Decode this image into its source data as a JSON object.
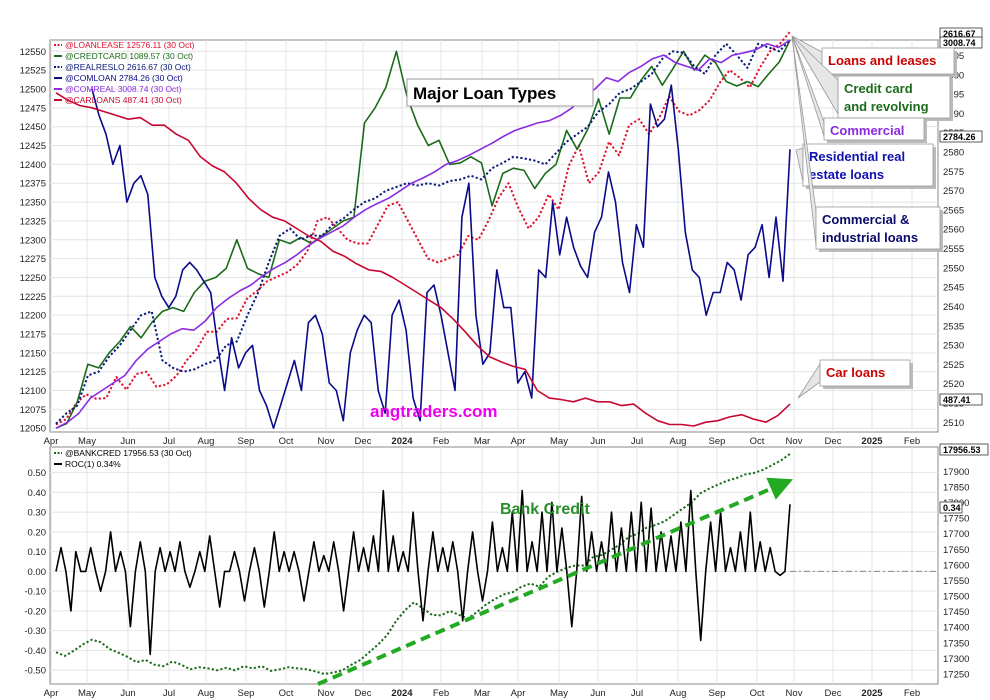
{
  "chart_data": [
    {
      "type": "line",
      "title": "Major Loan Types",
      "watermark": "angtraders.com",
      "x_ticks": [
        "Apr",
        "May",
        "Jun",
        "Jul",
        "Aug",
        "Sep",
        "Oct",
        "Nov",
        "Dec",
        "2024",
        "Feb",
        "Mar",
        "Apr",
        "May",
        "Jun",
        "Jul",
        "Aug",
        "Sep",
        "Oct",
        "Nov",
        "Dec",
        "2025",
        "Feb"
      ],
      "left_axis_ticks": [
        "12050",
        "12075",
        "12100",
        "12125",
        "12150",
        "12175",
        "12200",
        "12225",
        "12250",
        "12275",
        "12300",
        "12325",
        "12350",
        "12375",
        "12400",
        "12425",
        "12450",
        "12475",
        "12500",
        "12525",
        "12550"
      ],
      "right_axis_ticks": [
        "2510",
        "2515",
        "2520",
        "2525",
        "2530",
        "2535",
        "2540",
        "2545",
        "2550",
        "2555",
        "2560",
        "2565",
        "2570",
        "2575",
        "2580",
        "2585",
        "2590",
        "2595",
        "2600",
        "2605"
      ],
      "left_ylim": [
        12045,
        12565
      ],
      "right_ylim": [
        2507.5,
        2609
      ],
      "grid": true,
      "legend_position": "top-left",
      "last_value_flags": [
        "2616.67",
        "3008.74",
        "2784.26",
        "487.41"
      ],
      "series": [
        {
          "name": "@LOANLEASE 12576.11 (30 Oct)",
          "color": "#e0102e",
          "dash": "dotted",
          "values": [
            12055,
            12062,
            12083,
            12095,
            12089,
            12090,
            12118,
            12101,
            12122,
            12125,
            12105,
            12108,
            12120,
            12140,
            12155,
            12178,
            12178,
            12195,
            12196,
            12222,
            12232,
            12245,
            12251,
            12257,
            12267,
            12285,
            12325,
            12330,
            12315,
            12300,
            12295,
            12295,
            12320,
            12345,
            12350,
            12325,
            12300,
            12275,
            12270,
            12275,
            12280,
            12305,
            12300,
            12325,
            12355,
            12375,
            12342,
            12315,
            12330,
            12360,
            12340,
            12398,
            12425,
            12375,
            12390,
            12430,
            12412,
            12452,
            12460,
            12440,
            12462,
            12490,
            12470,
            12465,
            12472,
            12485,
            12508,
            12525,
            12515,
            12502,
            12528,
            12550,
            12560,
            12576
          ]
        },
        {
          "name": "@CREDTCARD 1089.57 (30 Oct)",
          "color": "#1a6b1a",
          "dash": "solid",
          "values": [
            12050,
            12056,
            12085,
            12135,
            12130,
            12150,
            12165,
            12185,
            12170,
            12190,
            12205,
            12210,
            12205,
            12230,
            12245,
            12250,
            12262,
            12300,
            12262,
            12255,
            12250,
            12300,
            12295,
            12303,
            12295,
            12305,
            12315,
            12325,
            12330,
            12455,
            12475,
            12502,
            12550,
            12490,
            12452,
            12425,
            12432,
            12400,
            12402,
            12410,
            12402,
            12345,
            12388,
            12395,
            12392,
            12368,
            12388,
            12400,
            12445,
            12420,
            12447,
            12487,
            12440,
            12488,
            12488,
            12512,
            12530,
            12505,
            12527,
            12550,
            12525,
            12545,
            12535,
            12510,
            12504,
            12510,
            12503,
            12520,
            12536,
            12565
          ]
        },
        {
          "name": "@REALRESLO 2616.67 (30 Oct)",
          "color": "#0a1a7a",
          "dash": "dotted",
          "values": [
            12056,
            12070,
            12080,
            12120,
            12125,
            12145,
            12160,
            12180,
            12200,
            12205,
            12140,
            12130,
            12125,
            12128,
            12135,
            12140,
            12160,
            12165,
            12200,
            12230,
            12270,
            12305,
            12315,
            12300,
            12306,
            12305,
            12320,
            12328,
            12340,
            12350,
            12355,
            12365,
            12370,
            12375,
            12372,
            12375,
            12372,
            12378,
            12380,
            12385,
            12380,
            12395,
            12402,
            12410,
            12408,
            12405,
            12400,
            12415,
            12430,
            12440,
            12450,
            12470,
            12480,
            12495,
            12500,
            12510,
            12520,
            12540,
            12550,
            12548,
            12530,
            12520,
            12545,
            12560,
            12545,
            12528,
            12560,
            12555,
            12550,
            12565
          ]
        },
        {
          "name": "@COMLOAN 2784.26 (30 Oct)",
          "color": "#0a0a8a",
          "dash": "solid",
          "values": [
            12500,
            12465,
            12440,
            12400,
            12425,
            12350,
            12375,
            12385,
            12360,
            12250,
            12225,
            12210,
            12225,
            12260,
            12270,
            12260,
            12245,
            12230,
            12160,
            12100,
            12170,
            12130,
            12150,
            12160,
            12100,
            12080,
            12050,
            12080,
            12110,
            12140,
            12100,
            12190,
            12200,
            12175,
            12110,
            12100,
            12060,
            12150,
            12180,
            12200,
            12190,
            12100,
            12070,
            12200,
            12220,
            12180,
            12090,
            12060,
            12230,
            12240,
            12200,
            12150,
            12100,
            12330,
            12375,
            12200,
            12135,
            12150,
            12260,
            12210,
            12210,
            12110,
            12125,
            12090,
            12260,
            12250,
            12350,
            12280,
            12330,
            12290,
            12265,
            12250,
            12310,
            12330,
            12390,
            12350,
            12270,
            12230,
            12320,
            12290,
            12480,
            12450,
            12460,
            12505,
            12420,
            12310,
            12260,
            12250,
            12200,
            12230,
            12230,
            12270,
            12260,
            12220,
            12280,
            12290,
            12320,
            12250,
            12330,
            12245,
            12420
          ]
        },
        {
          "name": "@COMREAL 3008.74 (30 Oct)",
          "color": "#8a2be2",
          "dash": "solid",
          "values": [
            12050,
            12058,
            12070,
            12090,
            12100,
            12110,
            12120,
            12140,
            12155,
            12165,
            12175,
            12182,
            12180,
            12192,
            12210,
            12222,
            12232,
            12240,
            12252,
            12262,
            12270,
            12280,
            12292,
            12302,
            12310,
            12318,
            12330,
            12340,
            12348,
            12355,
            12365,
            12375,
            12382,
            12390,
            12400,
            12405,
            12412,
            12420,
            12428,
            12437,
            12445,
            12450,
            12455,
            12458,
            12465,
            12475,
            12490,
            12500,
            12515,
            12510,
            12522,
            12530,
            12540,
            12545,
            12535,
            12530,
            12525,
            12540,
            12535,
            12545,
            12548,
            12552,
            12560,
            12555,
            12565
          ]
        },
        {
          "name": "@CARLOANS 487.41 (30 Oct)",
          "color": "#c80830",
          "dash": "solid",
          "values": [
            12495,
            12485,
            12478,
            12475,
            12470,
            12465,
            12460,
            12462,
            12452,
            12452,
            12440,
            12432,
            12410,
            12398,
            12390,
            12375,
            12355,
            12340,
            12330,
            12325,
            12315,
            12305,
            12298,
            12285,
            12278,
            12268,
            12260,
            12258,
            12250,
            12240,
            12230,
            12220,
            12210,
            12195,
            12178,
            12160,
            12145,
            12138,
            12132,
            12128,
            12100,
            12090,
            12088,
            12085,
            12090,
            12085,
            12085,
            12080,
            12082,
            12070,
            12060,
            12055,
            12055,
            12053,
            12058,
            12060,
            12065,
            12068,
            12062,
            12058,
            12067,
            12082
          ]
        }
      ]
    },
    {
      "type": "line",
      "title": "Bank Credit",
      "x_ticks": [
        "Apr",
        "May",
        "Jun",
        "Jul",
        "Aug",
        "Sep",
        "Oct",
        "Nov",
        "Dec",
        "2024",
        "Feb",
        "Mar",
        "Apr",
        "May",
        "Jun",
        "Jul",
        "Aug",
        "Sep",
        "Oct",
        "Nov",
        "Dec",
        "2025",
        "Feb"
      ],
      "left_axis_ticks": [
        "-0.50",
        "-0.40",
        "-0.30",
        "-0.20",
        "-0.10",
        "0.00",
        "0.10",
        "0.20",
        "0.30",
        "0.40",
        "0.50"
      ],
      "right_axis_ticks": [
        "17250",
        "17300",
        "17350",
        "17400",
        "17450",
        "17500",
        "17550",
        "17600",
        "17650",
        "17700",
        "17750",
        "17800",
        "17850",
        "17900"
      ],
      "left_ylim": [
        -0.57,
        0.63
      ],
      "right_ylim": [
        17218,
        17978
      ],
      "grid": true,
      "legend_position": "top-left",
      "last_value_flags": [
        "17956.53",
        "0.34"
      ],
      "series": [
        {
          "name": "@BANKCRED 17956.53 (30 Oct)",
          "color": "#1a6b1a",
          "dash": "dotted",
          "values": [
            17320,
            17308,
            17325,
            17345,
            17360,
            17352,
            17330,
            17318,
            17305,
            17288,
            17295,
            17280,
            17275,
            17290,
            17280,
            17265,
            17272,
            17268,
            17262,
            17270,
            17262,
            17275,
            17268,
            17275,
            17260,
            17265,
            17272,
            17268,
            17265,
            17258,
            17250,
            17255,
            17262,
            17280,
            17295,
            17320,
            17345,
            17375,
            17420,
            17455,
            17480,
            17460,
            17440,
            17438,
            17452,
            17440,
            17428,
            17448,
            17472,
            17490,
            17505,
            17512,
            17530,
            17540,
            17530,
            17562,
            17578,
            17590,
            17598,
            17598,
            17625,
            17632,
            17648,
            17665,
            17690,
            17700,
            17720,
            17728,
            17740,
            17760,
            17780,
            17800,
            17830,
            17845,
            17858,
            17870,
            17878,
            17890,
            17895,
            17905,
            17920,
            17935,
            17956
          ]
        },
        {
          "name": "ROC(1) 0.34%",
          "color": "#000000",
          "dash": "solid",
          "values": [
            0,
            0.12,
            0,
            -0.2,
            0.1,
            0,
            0,
            0.12,
            0,
            -0.1,
            0,
            0.2,
            0,
            0.1,
            0,
            -0.28,
            0,
            0.15,
            0,
            -0.42,
            0,
            0.12,
            0,
            0.1,
            0,
            0.15,
            0,
            -0.08,
            0,
            0.1,
            0,
            0.18,
            0,
            -0.18,
            0,
            0,
            0.1,
            0,
            -0.15,
            0,
            0.12,
            0,
            -0.18,
            0,
            0.2,
            0,
            0.1,
            0,
            0.1,
            0,
            -0.15,
            0,
            0.15,
            0,
            0.08,
            0,
            0.15,
            0,
            -0.2,
            0,
            0.2,
            0,
            0.12,
            0,
            0.18,
            0,
            0.41,
            0,
            0.18,
            0,
            0.1,
            0,
            0.3,
            0,
            -0.25,
            0,
            0.2,
            0,
            0.12,
            0,
            0.15,
            0,
            -0.25,
            0,
            0.2,
            0,
            -0.15,
            0,
            0.25,
            0,
            0.12,
            0,
            0.3,
            0,
            0.41,
            0,
            0.15,
            0,
            0.3,
            0,
            0.35,
            0,
            0.22,
            0,
            -0.28,
            0,
            0.38,
            0,
            0.2,
            0,
            0.15,
            0,
            0.3,
            0,
            0.22,
            0,
            0.3,
            0,
            0.35,
            0,
            0.32,
            0,
            0.2,
            0,
            0.18,
            0,
            0.25,
            0,
            0.41,
            0,
            -0.35,
            0,
            0.25,
            0,
            0.3,
            0,
            0.12,
            0,
            0.2,
            0,
            0.3,
            0,
            0.15,
            0,
            0.12,
            0,
            -0.02,
            0,
            0.34
          ]
        }
      ]
    }
  ],
  "callouts": [
    {
      "text": "Loans and leases",
      "color": "#cc0000"
    },
    {
      "text": "Credit card\nand revolving",
      "color": "#1a6b1a"
    },
    {
      "text": "Commercial\nreal estate",
      "color": "#8a2be2"
    },
    {
      "text": "Residential real\nestate loans",
      "color": "#1010b0"
    },
    {
      "text": "Commercial  &\nindustrial loans",
      "color": "#0a0a6a"
    },
    {
      "text": "Car loans",
      "color": "#cc0000"
    }
  ],
  "colors": {
    "grid": "#e4e4e4",
    "frame": "#888888",
    "trend_arrow": "#22aa22",
    "watermark": "#ee00ee"
  }
}
